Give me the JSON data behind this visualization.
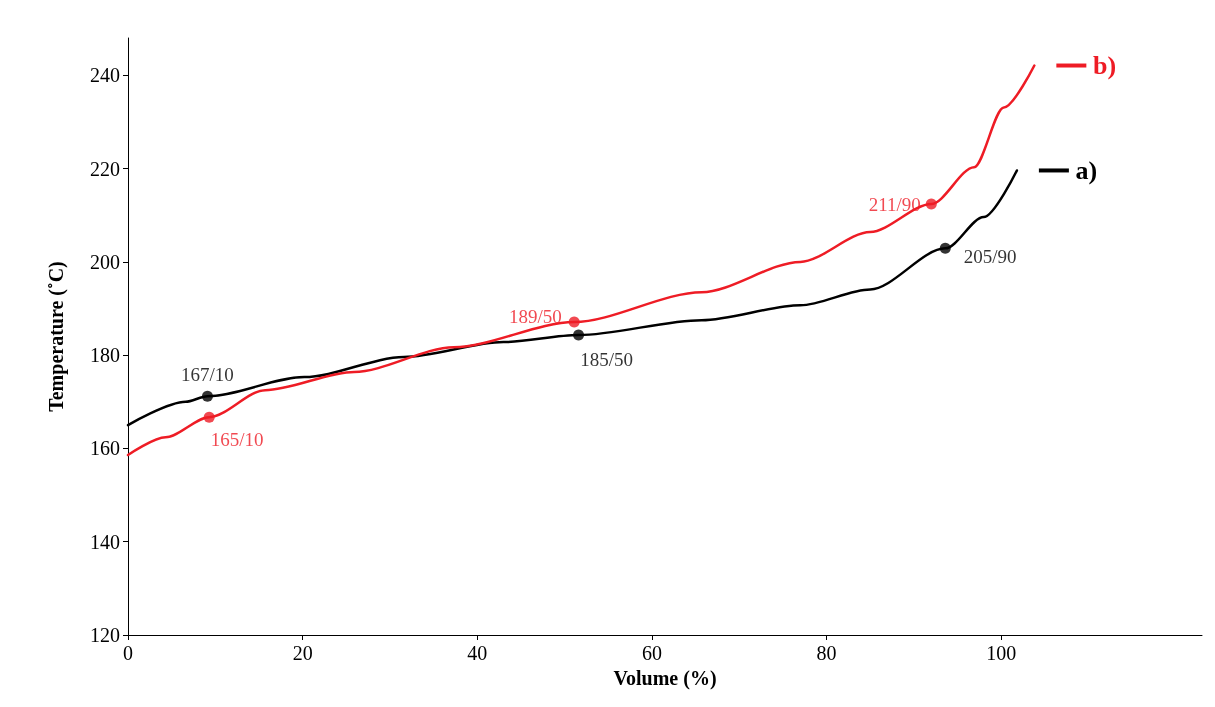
{
  "chart_data": {
    "type": "line",
    "xlabel": "Volume (%)",
    "ylabel": "Temperature (˚C)",
    "xlim": [
      0,
      123
    ],
    "xticks": [
      0,
      20,
      40,
      60,
      80,
      100
    ],
    "ylim": [
      120,
      248
    ],
    "yticks": [
      120,
      140,
      160,
      180,
      200,
      220,
      240
    ],
    "grid": false,
    "legend": "right",
    "marker": "none",
    "line_style": "solid",
    "series": [
      {
        "name": "a)",
        "color": "#000000",
        "x": [
          0,
          6.6,
          9.1,
          20.2,
          31.6,
          43,
          51.6,
          65.7,
          77,
          85,
          93.6,
          98,
          101.8
        ],
        "values": [
          165,
          170,
          171.2,
          175.3,
          179.6,
          182.8,
          184.3,
          187.5,
          190.7,
          194.1,
          202.9,
          209.6,
          219.6
        ]
      },
      {
        "name": "b)",
        "color": "#ee1c25",
        "x": [
          0,
          4.3,
          9.3,
          15.7,
          25.9,
          37.3,
          51.1,
          65.7,
          77,
          85,
          92,
          96.9,
          100.3,
          103.8
        ],
        "values": [
          158.6,
          162.4,
          166.7,
          172.5,
          176.4,
          181.7,
          187.1,
          193.5,
          200,
          206.4,
          212.4,
          220.3,
          233.1,
          242.1
        ]
      },
      {
        "type": "scatter",
        "marker": "circle",
        "color": "#000000",
        "x": [
          9.1,
          51.6,
          93.6
        ],
        "values": [
          171.2,
          184.3,
          202.9
        ],
        "value_labels": [
          "167/10",
          "185/50",
          "205/90"
        ]
      },
      {
        "type": "scatter",
        "marker": "circle",
        "color": "#ee1c25",
        "x": [
          9.3,
          51.1,
          92
        ],
        "values": [
          166.7,
          187.1,
          212.4
        ],
        "value_labels": [
          "165/10",
          "189/50",
          "211/90"
        ]
      }
    ]
  }
}
